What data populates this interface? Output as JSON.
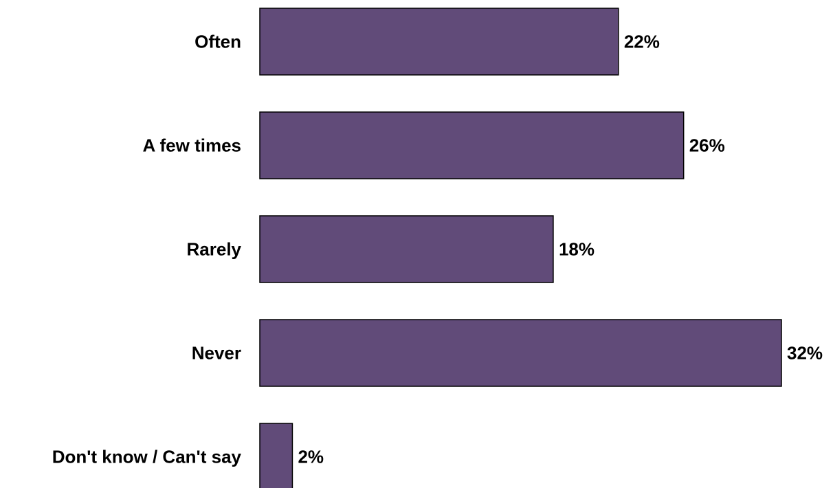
{
  "chart_data": {
    "type": "bar",
    "orientation": "horizontal",
    "categories": [
      "Often",
      "A few times",
      "Rarely",
      "Never",
      "Don't know / Can't say"
    ],
    "values": [
      22,
      26,
      18,
      32,
      2
    ],
    "value_labels": [
      "22%",
      "26%",
      "18%",
      "32%",
      "2%"
    ],
    "unit": "%",
    "title": "",
    "xlabel": "",
    "ylabel": "",
    "xlim": [
      0,
      32
    ],
    "grid": false,
    "legend": "none",
    "colors": {
      "bar": "#614B79",
      "bar_border": "#000000",
      "text": "#000000"
    }
  }
}
